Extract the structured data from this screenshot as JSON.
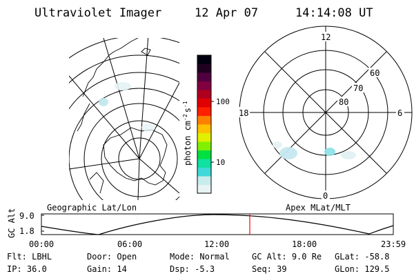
{
  "header": {
    "instrument": "Ultraviolet Imager",
    "date": "12 Apr 07",
    "time": "14:14:08 UT"
  },
  "colorbar": {
    "label": "photon cm",
    "label_exp": "-2",
    "label_unit": "s",
    "label_unit_exp": "-1",
    "ticks": [
      "100",
      "10"
    ],
    "colors": [
      "#e8f4f4",
      "#c8ecec",
      "#40d8d8",
      "#10e0a0",
      "#00e040",
      "#80f000",
      "#e0f000",
      "#ffc000",
      "#ff8000",
      "#ff2000",
      "#e00000",
      "#b00020",
      "#800040",
      "#500040",
      "#200020",
      "#000010"
    ]
  },
  "polar": {
    "mlt_labels": {
      "top": "12",
      "left": "18",
      "right": "6",
      "bottom": "0"
    },
    "lat_labels": [
      "60",
      "70",
      "80"
    ]
  },
  "maps": {
    "left_label": "Geographic Lat/Lon",
    "right_label": "Apex MLat/MLT"
  },
  "timeline": {
    "ylabel": "GC Alt",
    "yticks": [
      "9.0",
      "1.8"
    ],
    "xticks": [
      "00:00",
      "06:00",
      "12:00",
      "18:00",
      "23:59"
    ],
    "current_marker_color": "#ff0000"
  },
  "status": {
    "row1": [
      {
        "label": "Flt:",
        "value": "LBHL"
      },
      {
        "label": "Door:",
        "value": "Open"
      },
      {
        "label": "Mode:",
        "value": "Normal"
      },
      {
        "label": "GC Alt:",
        "value": "9.0 Re"
      },
      {
        "label": "GLat:",
        "value": "-58.8"
      }
    ],
    "row2": [
      {
        "label": "IP:",
        "value": "36.0"
      },
      {
        "label": "Gain:",
        "value": "14"
      },
      {
        "label": "Dsp:",
        "value": "-5.3"
      },
      {
        "label": "Seq:",
        "value": "39"
      },
      {
        "label": "GLon:",
        "value": "129.5"
      }
    ]
  }
}
